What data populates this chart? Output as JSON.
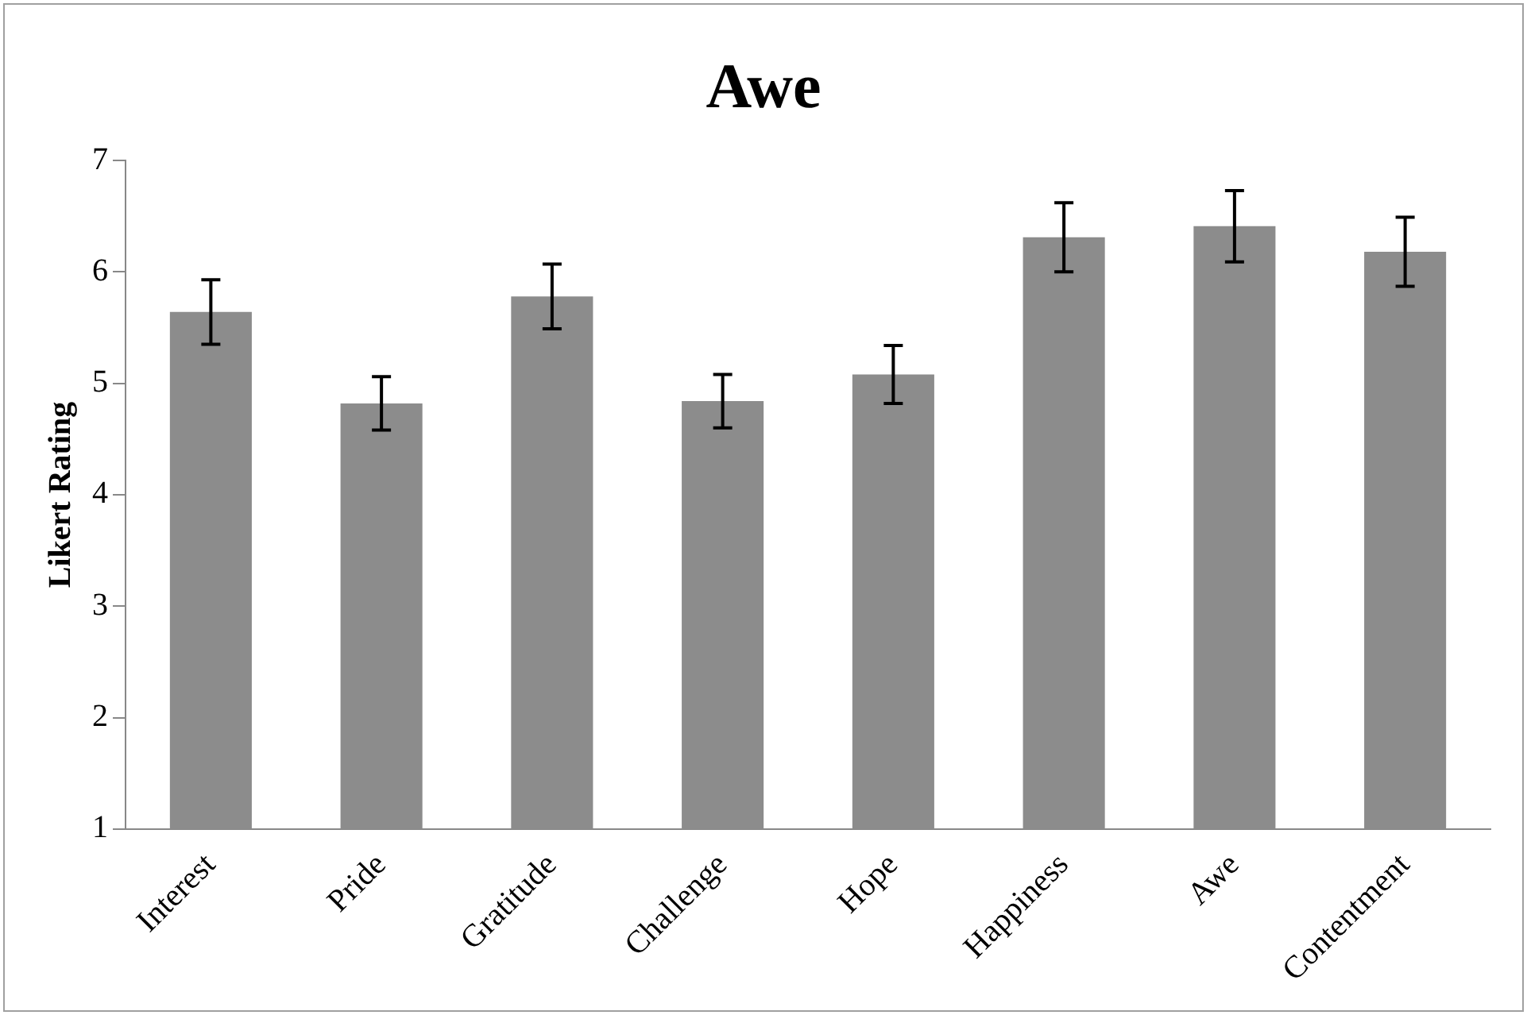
{
  "chart_data": {
    "type": "bar",
    "title": "Awe",
    "ylabel": "Likert Rating",
    "categories": [
      "Interest",
      "Pride",
      "Gratitude",
      "Challenge",
      "Hope",
      "Happiness",
      "Awe",
      "Contentment"
    ],
    "values": [
      5.64,
      4.82,
      5.78,
      4.84,
      5.08,
      6.31,
      6.41,
      6.18
    ],
    "errors": [
      0.29,
      0.24,
      0.29,
      0.24,
      0.26,
      0.31,
      0.32,
      0.31
    ],
    "color": "#8c8c8c",
    "ylim": [
      1,
      7
    ],
    "yticks": [
      1,
      2,
      3,
      4,
      5,
      6,
      7
    ],
    "grid": false,
    "legend": false
  }
}
